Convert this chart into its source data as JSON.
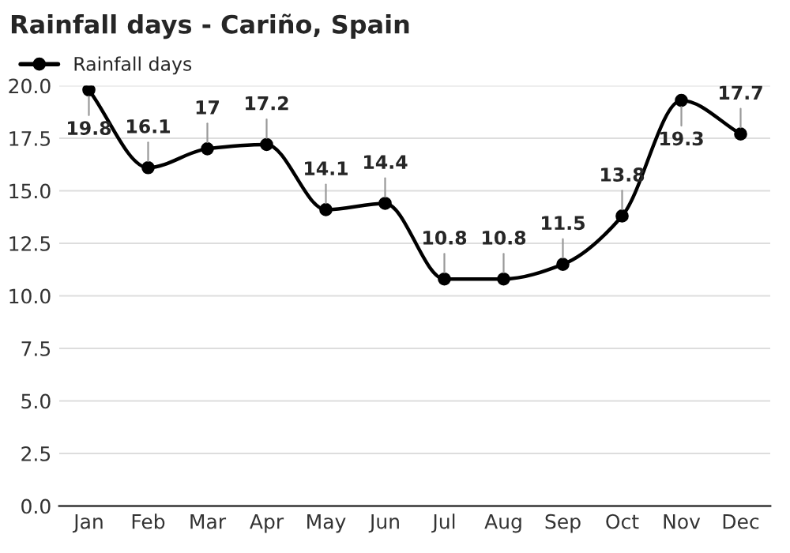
{
  "chart_data": {
    "type": "line",
    "title": "Rainfall days - Cariño, Spain",
    "categories": [
      "Jan",
      "Feb",
      "Mar",
      "Apr",
      "May",
      "Jun",
      "Jul",
      "Aug",
      "Sep",
      "Oct",
      "Nov",
      "Dec"
    ],
    "series": [
      {
        "name": "Rainfall days",
        "color": "#000000",
        "values": [
          19.8,
          16.1,
          17,
          17.2,
          14.1,
          14.4,
          10.8,
          10.8,
          11.5,
          13.8,
          19.3,
          17.7
        ]
      }
    ],
    "ylim": [
      0,
      20
    ],
    "yticks": [
      {
        "value": 0,
        "label": "0.0"
      },
      2.5,
      {
        "value": 5,
        "label": "5.0"
      },
      7.5,
      {
        "value": 10,
        "label": "10.0"
      },
      12.5,
      {
        "value": 15,
        "label": "15.0"
      },
      17.5,
      {
        "value": 20,
        "label": "20.0"
      }
    ],
    "grid": "y",
    "legend": "top left",
    "marker": "circle",
    "line_style": "solid",
    "data_labels": true
  }
}
